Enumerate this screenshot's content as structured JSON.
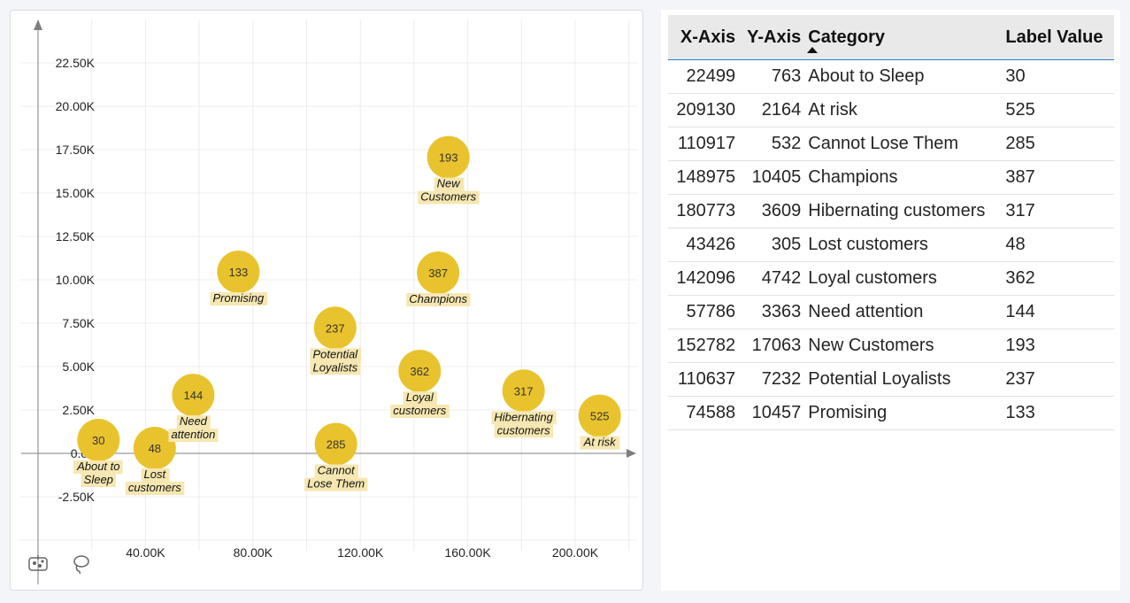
{
  "colors": {
    "bubble": "#e9c32d",
    "label_bg": "#f6e7b1",
    "axis": "#7f7f7f",
    "grid": "#ececec",
    "header_bg": "#e9e9e9",
    "header_underline": "#2b7bd1"
  },
  "chart_data": {
    "type": "scatter",
    "title": "",
    "xlabel": "",
    "ylabel": "",
    "xlim": [
      0,
      220000
    ],
    "ylim": [
      -3750,
      25000
    ],
    "x_ticks": [
      40000,
      80000,
      120000,
      160000,
      200000
    ],
    "x_tick_labels": [
      "40.00K",
      "80.00K",
      "120.00K",
      "160.00K",
      "200.00K"
    ],
    "y_ticks": [
      -2500,
      0,
      2500,
      5000,
      7500,
      10000,
      12500,
      15000,
      17500,
      20000,
      22500
    ],
    "y_tick_labels": [
      "-2.50K",
      "0.00",
      "2.50K",
      "5.00K",
      "7.50K",
      "10.00K",
      "12.50K",
      "15.00K",
      "17.50K",
      "20.00K",
      "22.50K"
    ],
    "grid": true,
    "points": [
      {
        "x": 22499,
        "y": 763,
        "category": "About to Sleep",
        "label_lines": [
          "About to",
          "Sleep"
        ],
        "value": 30
      },
      {
        "x": 209130,
        "y": 2164,
        "category": "At risk",
        "label_lines": [
          "At risk"
        ],
        "value": 525
      },
      {
        "x": 110917,
        "y": 532,
        "category": "Cannot Lose Them",
        "label_lines": [
          "Cannot",
          "Lose Them"
        ],
        "value": 285
      },
      {
        "x": 148975,
        "y": 10405,
        "category": "Champions",
        "label_lines": [
          "Champions"
        ],
        "value": 387
      },
      {
        "x": 180773,
        "y": 3609,
        "category": "Hibernating customers",
        "label_lines": [
          "Hibernating",
          "customers"
        ],
        "value": 317
      },
      {
        "x": 43426,
        "y": 305,
        "category": "Lost customers",
        "label_lines": [
          "Lost",
          "customers"
        ],
        "value": 48
      },
      {
        "x": 142096,
        "y": 4742,
        "category": "Loyal customers",
        "label_lines": [
          "Loyal",
          "customers"
        ],
        "value": 362
      },
      {
        "x": 57786,
        "y": 3363,
        "category": "Need attention",
        "label_lines": [
          "Need",
          "attention"
        ],
        "value": 144
      },
      {
        "x": 152782,
        "y": 17063,
        "category": "New Customers",
        "label_lines": [
          "New",
          "Customers"
        ],
        "value": 193
      },
      {
        "x": 110637,
        "y": 7232,
        "category": "Potential Loyalists",
        "label_lines": [
          "Potential",
          "Loyalists"
        ],
        "value": 237
      },
      {
        "x": 74588,
        "y": 10457,
        "category": "Promising",
        "label_lines": [
          "Promising"
        ],
        "value": 133
      }
    ]
  },
  "toolbar": {
    "icons": [
      "scatter-select-icon",
      "lasso-icon"
    ]
  },
  "table": {
    "columns": [
      "X-Axis",
      "Y-Axis",
      "Category",
      "Label Value"
    ],
    "sorted_column": "Category",
    "rows": [
      [
        "22499",
        "763",
        "About to Sleep",
        "30"
      ],
      [
        "209130",
        "2164",
        "At risk",
        "525"
      ],
      [
        "110917",
        "532",
        "Cannot Lose Them",
        "285"
      ],
      [
        "148975",
        "10405",
        "Champions",
        "387"
      ],
      [
        "180773",
        "3609",
        "Hibernating customers",
        "317"
      ],
      [
        "43426",
        "305",
        "Lost customers",
        "48"
      ],
      [
        "142096",
        "4742",
        "Loyal customers",
        "362"
      ],
      [
        "57786",
        "3363",
        "Need attention",
        "144"
      ],
      [
        "152782",
        "17063",
        "New Customers",
        "193"
      ],
      [
        "110637",
        "7232",
        "Potential Loyalists",
        "237"
      ],
      [
        "74588",
        "10457",
        "Promising",
        "133"
      ]
    ]
  }
}
